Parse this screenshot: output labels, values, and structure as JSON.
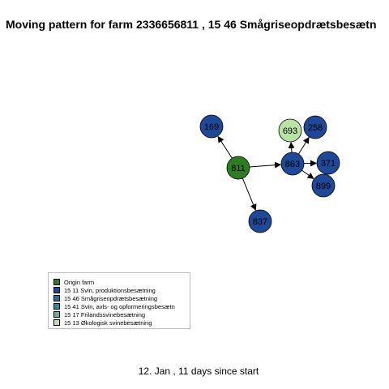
{
  "title": "Moving pattern for farm 2336656811 , 15 46 Smågriseopdrætsbesætn",
  "footer": "12. Jan ,  11 days since start",
  "colors": {
    "origin_fill": "#2e7d22",
    "production_fill": "#1f4899",
    "organic_fill": "#b9e3a6",
    "edge": "#000000"
  },
  "nodes": [
    {
      "id": "811",
      "label": "811",
      "category": "Origin farm",
      "color": "#2e7d22"
    },
    {
      "id": "169",
      "label": "169",
      "category": "15 11 Svin, produktionsbesætning",
      "color": "#1f4899"
    },
    {
      "id": "837",
      "label": "837",
      "category": "15 11 Svin, produktionsbesætning",
      "color": "#1f4899"
    },
    {
      "id": "863",
      "label": "863",
      "category": "15 11 Svin, produktionsbesætning",
      "color": "#1f4899"
    },
    {
      "id": "693",
      "label": "693",
      "category": "15 13 Økologisk svinebesætning",
      "color": "#b9e3a6"
    },
    {
      "id": "258",
      "label": "258",
      "category": "15 11 Svin, produktionsbesætning",
      "color": "#1f4899"
    },
    {
      "id": "371",
      "label": "371",
      "category": "15 11 Svin, produktionsbesætning",
      "color": "#1f4899"
    },
    {
      "id": "899",
      "label": "899",
      "category": "15 11 Svin, produktionsbesætning",
      "color": "#1f4899"
    }
  ],
  "edges": [
    {
      "from": "811",
      "to": "169"
    },
    {
      "from": "811",
      "to": "837"
    },
    {
      "from": "811",
      "to": "863"
    },
    {
      "from": "863",
      "to": "693"
    },
    {
      "from": "863",
      "to": "258"
    },
    {
      "from": "863",
      "to": "371"
    },
    {
      "from": "863",
      "to": "899"
    }
  ],
  "legend": [
    {
      "label": "Origin farm",
      "color": "#2e7d22"
    },
    {
      "label": "15 11 Svin, produktionsbesætning",
      "color": "#1f4899"
    },
    {
      "label": "15 46 Smågriseopdrætsbesætning",
      "color": "#2a6aa3"
    },
    {
      "label": "15 41 Svin, avls- og opformeringsbesætn",
      "color": "#2f8ba0"
    },
    {
      "label": "15 17 Frilandssvinebesætning",
      "color": "#5fb3a1"
    },
    {
      "label": "15 13 Økologisk svinebesætning",
      "color": "#b9e3a6"
    }
  ]
}
